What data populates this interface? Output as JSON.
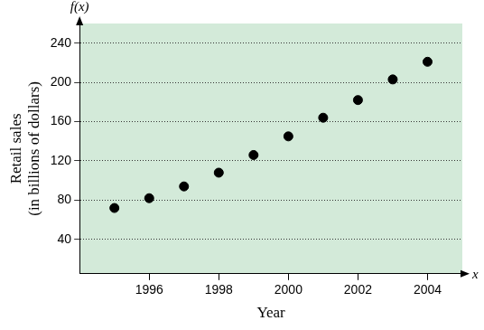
{
  "chart_data": {
    "type": "scatter",
    "x_axis_name": "x",
    "y_axis_name": "f(x)",
    "xlabel": "Year",
    "ylabel": [
      "Retail sales",
      "(in billions of dollars)"
    ],
    "x": [
      1995,
      1996,
      1997,
      1998,
      1999,
      2000,
      2001,
      2002,
      2003,
      2004
    ],
    "values": [
      72,
      82,
      94,
      108,
      126,
      145,
      164,
      182,
      203,
      221
    ],
    "color": "#000000",
    "marker": "circle",
    "xlim": [
      1994,
      2005
    ],
    "xticks": [
      1996,
      1998,
      2000,
      2002,
      2004
    ],
    "ylim": [
      5,
      260
    ],
    "yticks": [
      40,
      80,
      120,
      160,
      200,
      240
    ],
    "grid": true
  }
}
